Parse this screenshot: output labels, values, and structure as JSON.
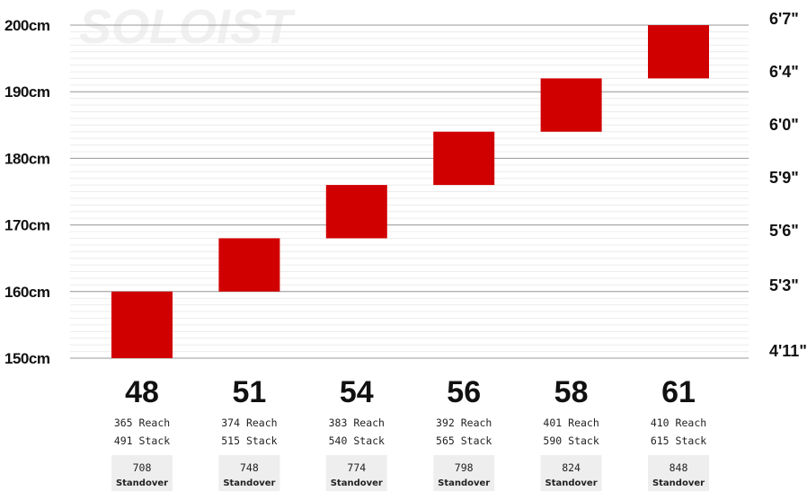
{
  "watermark": "SOLOIST",
  "colors": {
    "bar": "#d10000",
    "box_bg": "#eeeeee",
    "major_grid": "#9a9a9a",
    "minor_grid": "#ececec"
  },
  "chart_data": {
    "type": "bar",
    "title": "",
    "xlabel": "",
    "ylabel": "",
    "ylim": [
      150,
      200
    ],
    "y_unit": "cm",
    "categories": [
      "48",
      "51",
      "54",
      "56",
      "58",
      "61"
    ],
    "ranges": [
      [
        150,
        160
      ],
      [
        160,
        168
      ],
      [
        168,
        176
      ],
      [
        176,
        184
      ],
      [
        184,
        192
      ],
      [
        192,
        200
      ]
    ],
    "y_ticks_left": [
      "200cm",
      "190cm",
      "180cm",
      "170cm",
      "160cm",
      "150cm"
    ],
    "y_ticks_right": [
      "6'7\"",
      "6'4\"",
      "6'0\"",
      "5'9\"",
      "5'6\"",
      "5'3\"",
      "4'11\""
    ],
    "reach": [
      365,
      374,
      383,
      392,
      401,
      410
    ],
    "stack": [
      491,
      515,
      540,
      565,
      590,
      615
    ],
    "standover": [
      708,
      748,
      774,
      798,
      824,
      848
    ],
    "reach_label": "Reach",
    "stack_label": "Stack",
    "standover_label": "Standover",
    "grid": true
  }
}
